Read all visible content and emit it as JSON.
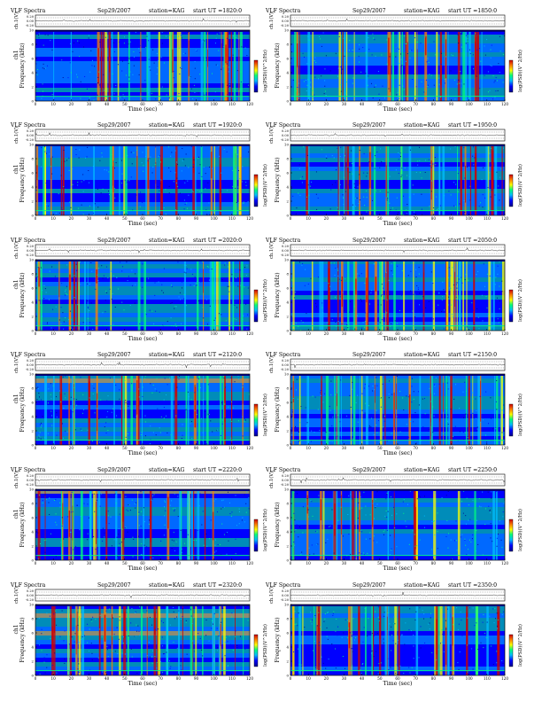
{
  "figure": {
    "common": {
      "header_label": "VLF Spectra",
      "date": "Sep29/2007",
      "station": "station=KAG",
      "start_prefix": "start  UT  =",
      "top_ylabel": "ch.1(V)",
      "top_ticks": [
        "0.20",
        "0.00",
        "-0.20"
      ],
      "ylabel": "Frequency  (kHz)",
      "ylabel_alt": "ch1",
      "freq_ticks": [
        "0",
        "2",
        "4",
        "6",
        "8",
        "10"
      ],
      "xlabel": "Time  (sec)",
      "time_ticks": [
        "0",
        "10",
        "20",
        "30",
        "40",
        "50",
        "60",
        "70",
        "80",
        "90",
        "100",
        "110",
        "120"
      ],
      "colorbar_label": "log(PSD)(V^2/Hz)",
      "colorbar_ticks": [
        "",
        "",
        ""
      ]
    },
    "panels": [
      {
        "start": "1820:0"
      },
      {
        "start": "1850:0"
      },
      {
        "start": "1920:0"
      },
      {
        "start": "1950:0"
      },
      {
        "start": "2020:0"
      },
      {
        "start": "2050:0"
      },
      {
        "start": "2120:0"
      },
      {
        "start": "2150:0"
      },
      {
        "start": "2220:0"
      },
      {
        "start": "2250:0"
      },
      {
        "start": "2320:0"
      },
      {
        "start": "2350:0"
      }
    ]
  },
  "chart_data": {
    "type": "heatmap",
    "count": 12,
    "x_unit": "sec",
    "xlim": [
      0,
      120
    ],
    "ylim_kHz": [
      0,
      10
    ],
    "top_trace_ylim_V": [
      -0.2,
      0.2
    ],
    "colormap": [
      "#00008b",
      "#0000ff",
      "#00bfff",
      "#00ff80",
      "#ffff00",
      "#ff8000",
      "#d00000"
    ],
    "note": "VLF spectrogram grid, 6 rows x 2 columns"
  }
}
